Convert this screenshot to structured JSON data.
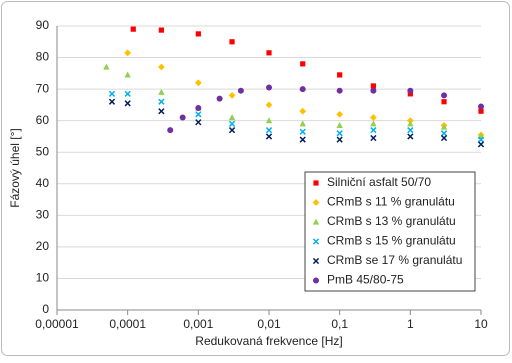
{
  "chart_data": {
    "type": "scatter",
    "x_label": "Redukovaná frekvence [Hz]",
    "y_label": "Fázový úhel [°]",
    "x_log": true,
    "xlim": [
      1e-05,
      10
    ],
    "xticks": [
      {
        "value": 1e-05,
        "label": "0,00001"
      },
      {
        "value": 0.0001,
        "label": "0,0001"
      },
      {
        "value": 0.001,
        "label": "0,001"
      },
      {
        "value": 0.01,
        "label": "0,01"
      },
      {
        "value": 0.1,
        "label": "0,1"
      },
      1,
      10
    ],
    "ylim": [
      0,
      90
    ],
    "yticks": [
      0,
      10,
      20,
      30,
      40,
      50,
      60,
      70,
      80,
      90
    ],
    "grid": true,
    "legend": "lower right",
    "series": [
      {
        "name": "Silniční asfalt 50/70",
        "color": "#ff0000",
        "marker": "square",
        "x": [
          0.00012,
          0.0003,
          0.001,
          0.003,
          0.01,
          0.03,
          0.1,
          0.3,
          1,
          3,
          10
        ],
        "values": [
          89,
          88.7,
          87.5,
          85,
          81.5,
          78,
          74.5,
          71,
          68.5,
          66,
          63
        ]
      },
      {
        "name": "CRmB s 11 % granulátu",
        "color": "#ffc000",
        "marker": "diamond",
        "x": [
          0.0001,
          0.0003,
          0.001,
          0.003,
          0.01,
          0.03,
          0.1,
          0.3,
          1,
          3,
          10
        ],
        "values": [
          81.5,
          77,
          72,
          68,
          65,
          63,
          62,
          61,
          60,
          58.5,
          55.5
        ]
      },
      {
        "name": "CRmB s 13 % granulátu",
        "color": "#92d050",
        "marker": "triangle",
        "x": [
          5e-05,
          0.0001,
          0.0003,
          0.001,
          0.003,
          0.01,
          0.03,
          0.1,
          0.3,
          1,
          3,
          10
        ],
        "values": [
          77,
          74.5,
          69,
          64,
          61,
          60,
          59,
          58.5,
          59,
          59,
          58,
          55
        ]
      },
      {
        "name": "CRmB s 15 % granulátu",
        "color": "#00b0f0",
        "marker": "x",
        "x": [
          6e-05,
          0.0001,
          0.0003,
          0.001,
          0.003,
          0.01,
          0.03,
          0.1,
          0.3,
          1,
          3,
          10
        ],
        "values": [
          68.5,
          68.5,
          66,
          62,
          59,
          57,
          56.5,
          56,
          57,
          57,
          56,
          54
        ]
      },
      {
        "name": "CRmB se 17 % granulátu",
        "color": "#002060",
        "marker": "x",
        "x": [
          6e-05,
          0.0001,
          0.0003,
          0.001,
          0.003,
          0.01,
          0.03,
          0.1,
          0.3,
          1,
          3,
          10
        ],
        "values": [
          66,
          65.5,
          63,
          59.5,
          57,
          55,
          54,
          54,
          54.5,
          55,
          54.5,
          52.5
        ]
      },
      {
        "name": "PmB 45/80-75",
        "color": "#7030a0",
        "marker": "circle",
        "x": [
          0.0004,
          0.0006,
          0.001,
          0.002,
          0.004,
          0.01,
          0.03,
          0.1,
          0.3,
          1,
          3,
          10
        ],
        "values": [
          57,
          61,
          64,
          67,
          69.5,
          70.5,
          70,
          69.5,
          69.5,
          69.5,
          68,
          64.5
        ]
      }
    ]
  }
}
